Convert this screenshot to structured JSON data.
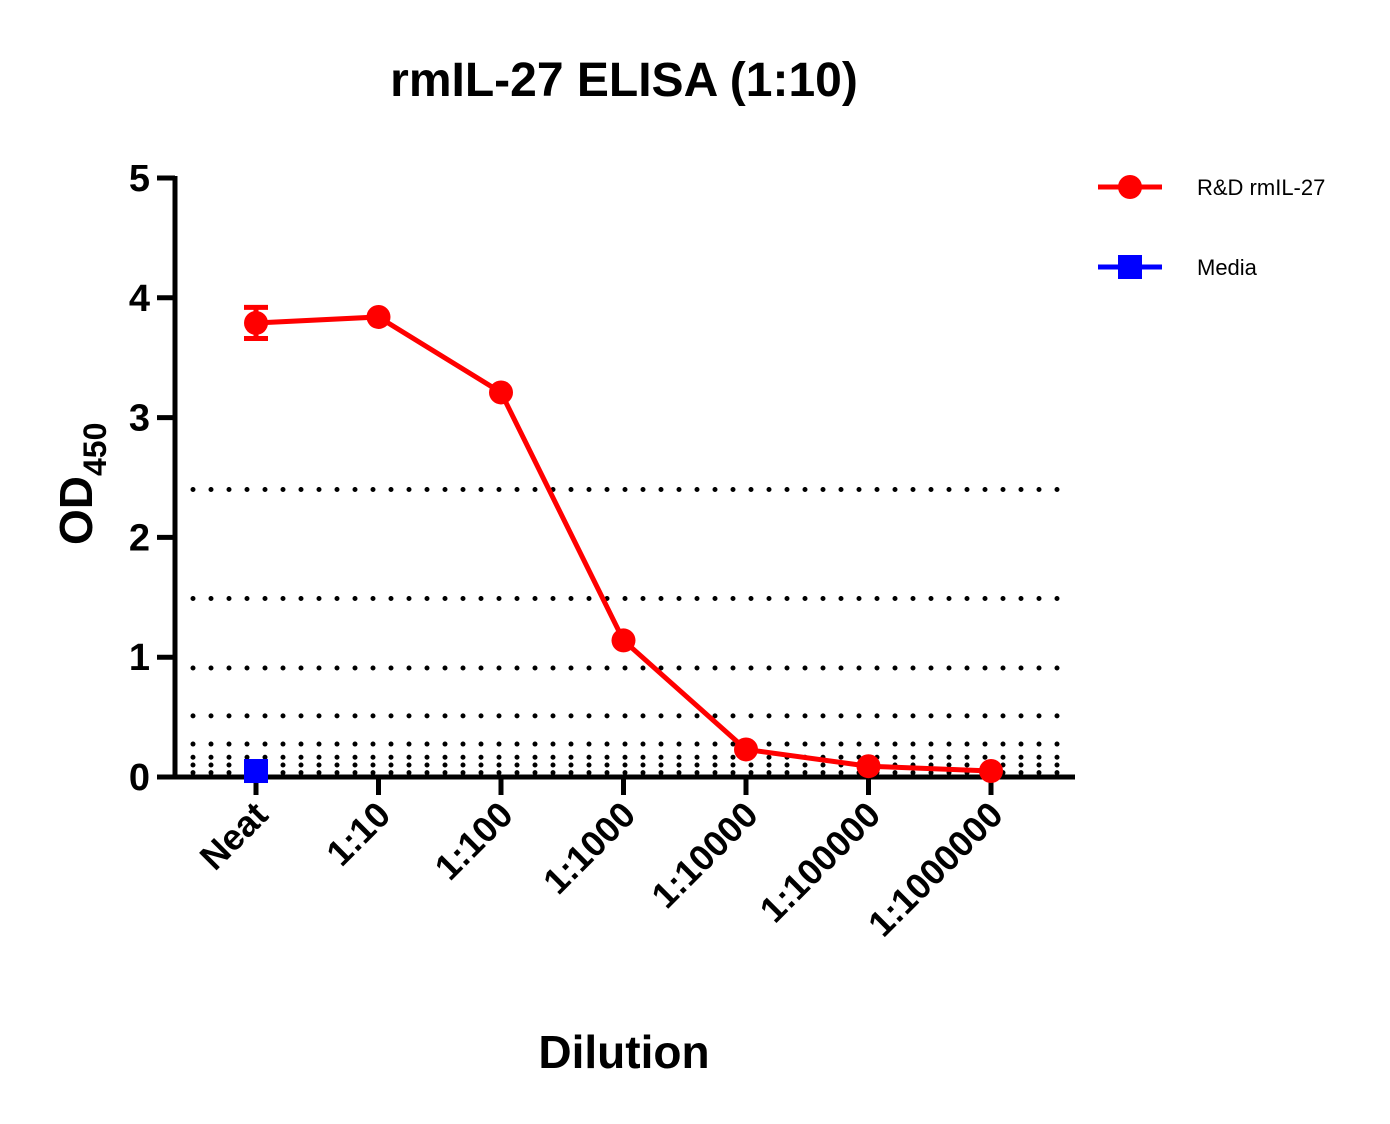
{
  "chart_data": {
    "type": "line",
    "title": "rmIL-27 ELISA (1:10)",
    "xlabel": "Dilution",
    "ylabel": "OD",
    "ylabel_subscript": "450",
    "ylim": [
      0,
      5
    ],
    "yticks": [
      "0",
      "1",
      "2",
      "3",
      "4",
      "5"
    ],
    "categories": [
      "Neat",
      "1:10",
      "1:100",
      "1:1000",
      "1:10000",
      "1:100000",
      "1:1000000"
    ],
    "reference_lines": [
      2.4,
      1.49,
      0.91,
      0.51,
      0.275,
      0.165,
      0.1,
      0.036
    ],
    "legend_position": "top-right",
    "series": [
      {
        "name": "R&D rmIL-27",
        "color": "#ff0000",
        "marker": "circle",
        "values": [
          3.79,
          3.84,
          3.21,
          1.14,
          0.23,
          0.09,
          0.05
        ],
        "error": [
          0.13,
          0,
          0,
          0,
          0,
          0,
          0
        ]
      },
      {
        "name": "Media",
        "color": "#0000ff",
        "marker": "square",
        "values": [
          0.05,
          null,
          null,
          null,
          null,
          null,
          null
        ],
        "error": [
          0,
          null,
          null,
          null,
          null,
          null,
          null
        ]
      }
    ]
  }
}
